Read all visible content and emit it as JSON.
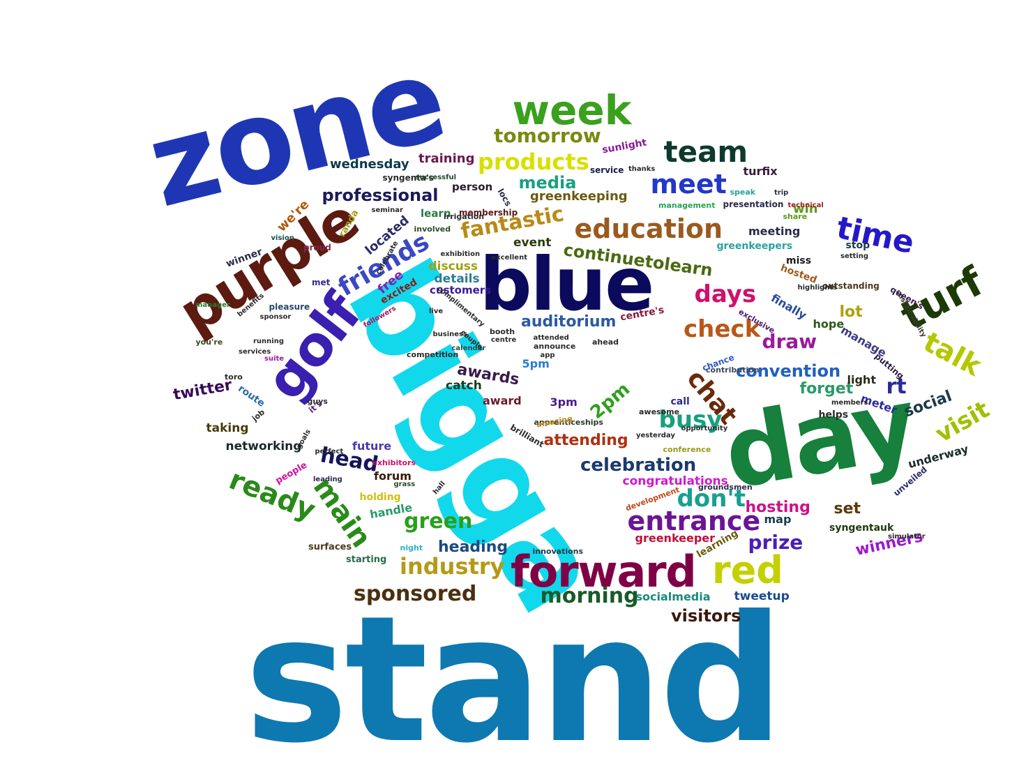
{
  "words": [
    {
      "text": "stand",
      "color": "#0e78b0"
    },
    {
      "text": "zone",
      "color": "#1f36b4"
    },
    {
      "text": "bigga",
      "color": "#12d8ec"
    },
    {
      "text": "day",
      "color": "#16803c"
    },
    {
      "text": "blue",
      "color": "#0b0a5c"
    },
    {
      "text": "purple",
      "color": "#5c1a10"
    },
    {
      "text": "golf",
      "color": "#3a1fb0"
    },
    {
      "text": "forward",
      "color": "#800046"
    },
    {
      "text": "week",
      "color": "#3aa01e"
    },
    {
      "text": "team",
      "color": "#0d3a2c"
    },
    {
      "text": "turf",
      "color": "#1c3a06"
    },
    {
      "text": "time",
      "color": "#2418c8"
    },
    {
      "text": "education",
      "color": "#9a5a1e"
    },
    {
      "text": "meet",
      "color": "#2438c8"
    },
    {
      "text": "red",
      "color": "#c4d000"
    },
    {
      "text": "entrance",
      "color": "#6a1496"
    },
    {
      "text": "friends",
      "color": "#3a48c4"
    },
    {
      "text": "days",
      "color": "#d0106a"
    },
    {
      "text": "check",
      "color": "#b85818"
    },
    {
      "text": "talk",
      "color": "#b4c800"
    },
    {
      "text": "ready",
      "color": "#2a8a1a"
    },
    {
      "text": "main",
      "color": "#2a8a1a"
    },
    {
      "text": "chat",
      "color": "#6a2a0a"
    },
    {
      "text": "products",
      "color": "#d8e000"
    },
    {
      "text": "tomorrow",
      "color": "#7a8a10"
    },
    {
      "text": "fantastic",
      "color": "#b88a18"
    },
    {
      "text": "industry",
      "color": "#b49a18"
    },
    {
      "text": "sponsored",
      "color": "#4a3010"
    },
    {
      "text": "morning",
      "color": "#1a5a2a"
    },
    {
      "text": "busy",
      "color": "#16a080"
    },
    {
      "text": "green",
      "color": "#2aa01a"
    },
    {
      "text": "don't",
      "color": "#18a090"
    },
    {
      "text": "visit",
      "color": "#a0c000"
    },
    {
      "text": "rt",
      "color": "#2a2a9a"
    },
    {
      "text": "head",
      "color": "#14145a"
    },
    {
      "text": "prize",
      "color": "#4a20b4"
    },
    {
      "text": "draw",
      "color": "#9a1a9a"
    },
    {
      "text": "convention",
      "color": "#2060c0"
    },
    {
      "text": "celebration",
      "color": "#1a3a6a"
    },
    {
      "text": "professional",
      "color": "#1a1a5a"
    },
    {
      "text": "continuetolearn",
      "color": "#4a6a10"
    },
    {
      "text": "media",
      "color": "#18a080"
    },
    {
      "text": "auditorium",
      "color": "#2a5aa0"
    },
    {
      "text": "social",
      "color": "#1a3a4a"
    },
    {
      "text": "2pm",
      "color": "#30a020"
    },
    {
      "text": "twitter",
      "color": "#3a0a5a"
    },
    {
      "text": "visitors",
      "color": "#3a1a0a"
    },
    {
      "text": "winners",
      "color": "#9a18d0"
    },
    {
      "text": "attending",
      "color": "#b03010"
    },
    {
      "text": "heading",
      "color": "#1a4a80"
    },
    {
      "text": "hosting",
      "color": "#d0108a"
    },
    {
      "text": "forget",
      "color": "#2a9a6a"
    },
    {
      "text": "awards",
      "color": "#3a1a4a"
    },
    {
      "text": "lot",
      "color": "#b0a010"
    },
    {
      "text": "set",
      "color": "#5a3a0a"
    },
    {
      "text": "greenkeeping",
      "color": "#6a5a10"
    },
    {
      "text": "training",
      "color": "#6a1a4a"
    },
    {
      "text": "wednesday",
      "color": "#0a3a4a"
    },
    {
      "text": "we're",
      "color": "#b05a0a"
    },
    {
      "text": "win",
      "color": "#5a9a1a"
    },
    {
      "text": "located",
      "color": "#2a2a6a"
    },
    {
      "text": "free",
      "color": "#8a1ab0"
    },
    {
      "text": "discuss",
      "color": "#a0a010"
    },
    {
      "text": "details",
      "color": "#2a7a9a"
    },
    {
      "text": "customers",
      "color": "#3a1a9a"
    },
    {
      "text": "event",
      "color": "#2a3a0a"
    },
    {
      "text": "congratulations",
      "color": "#d018d0"
    },
    {
      "text": "greenkeeper",
      "color": "#c0103a"
    },
    {
      "text": "tweetup",
      "color": "#1a4a90"
    },
    {
      "text": "socialmedia",
      "color": "#1a8a7a"
    },
    {
      "text": "networking",
      "color": "#1a2a2a"
    },
    {
      "text": "taking",
      "color": "#4a3a0a"
    },
    {
      "text": "catch",
      "color": "#1a3a1a"
    },
    {
      "text": "award",
      "color": "#6a1a2a"
    },
    {
      "text": "3pm",
      "color": "#4a1a8a"
    },
    {
      "text": "5pm",
      "color": "#2a7ad0"
    },
    {
      "text": "forum",
      "color": "#3a1a0a"
    },
    {
      "text": "handle",
      "color": "#2a9a6a"
    },
    {
      "text": "future",
      "color": "#4a3ab0"
    },
    {
      "text": "route",
      "color": "#2a6aa0"
    },
    {
      "text": "excited",
      "color": "#8a1a1a"
    },
    {
      "text": "centre's",
      "color": "#8a1a3a"
    },
    {
      "text": "finally",
      "color": "#2a4aa0"
    },
    {
      "text": "hope",
      "color": "#2a5a1a"
    },
    {
      "text": "manage",
      "color": "#3a3a8a"
    },
    {
      "text": "light",
      "color": "#2a2a1a"
    },
    {
      "text": "meter",
      "color": "#2a2a9a"
    },
    {
      "text": "underway",
      "color": "#1a2a2a"
    },
    {
      "text": "map",
      "color": "#1a3a4a"
    },
    {
      "text": "syngentauk",
      "color": "#1a3a0a"
    },
    {
      "text": "learning",
      "color": "#6a5a0a"
    },
    {
      "text": "meeting",
      "color": "#2a2a4a"
    },
    {
      "text": "greenkeepers",
      "color": "#2aa0a0"
    },
    {
      "text": "stop",
      "color": "#1a3a4a"
    },
    {
      "text": "miss",
      "color": "#1a1a1a"
    },
    {
      "text": "hosted",
      "color": "#a05a1a"
    },
    {
      "text": "turfix",
      "color": "#3a1a3a"
    },
    {
      "text": "presentation",
      "color": "#2a2a4a"
    },
    {
      "text": "service",
      "color": "#1a1a4a"
    },
    {
      "text": "sunlight",
      "color": "#8a1a9a"
    },
    {
      "text": "person",
      "color": "#2a1a2a"
    },
    {
      "text": "learn",
      "color": "#2a7a4a"
    },
    {
      "text": "syngenta's",
      "color": "#2a2a2a"
    },
    {
      "text": "winner",
      "color": "#2a2a4a"
    },
    {
      "text": "call",
      "color": "#2a2a9a"
    },
    {
      "text": "helps",
      "color": "#2a2a2a"
    },
    {
      "text": "holding",
      "color": "#d0c010"
    },
    {
      "text": "surfaces",
      "color": "#4a3a1a"
    },
    {
      "text": "starting",
      "color": "#2a6a4a"
    },
    {
      "text": "pleasure",
      "color": "#2a4a6a"
    },
    {
      "text": "competition",
      "color": "#2a2a2a"
    },
    {
      "text": "announce",
      "color": "#2a2a2a"
    },
    {
      "text": "innovations",
      "color": "#1a3a4a"
    },
    {
      "text": "involved",
      "color": "#2a4a2a"
    },
    {
      "text": "ahead",
      "color": "#2a2a2a"
    },
    {
      "text": "contribution",
      "color": "#3a4a5a"
    },
    {
      "text": "apprenticeships",
      "color": "#2a3a2a"
    },
    {
      "text": "conference",
      "color": "#9a9a1a"
    },
    {
      "text": "chance",
      "color": "#2a5ad0"
    },
    {
      "text": "toro",
      "color": "#2a2a2a"
    },
    {
      "text": "guys",
      "color": "#2a2a2a"
    },
    {
      "text": "you're",
      "color": "#3a4a1a"
    },
    {
      "text": "met",
      "color": "#2a2a9a"
    },
    {
      "text": "proud",
      "color": "#7a2a4a"
    },
    {
      "text": "vision",
      "color": "#1a4a4a"
    },
    {
      "text": "it's",
      "color": "#5a2a6a"
    },
    {
      "text": "people",
      "color": "#d010a0"
    },
    {
      "text": "exhibitors",
      "color": "#d0106a"
    },
    {
      "text": "amazing",
      "color": "#c08a1a"
    },
    {
      "text": "brilliant",
      "color": "#2a2a2a"
    },
    {
      "text": "awesome",
      "color": "#2a2a2a"
    },
    {
      "text": "leading",
      "color": "#2a2a4a"
    },
    {
      "text": "grass",
      "color": "#2a4a2a"
    },
    {
      "text": "night",
      "color": "#2ab0d0"
    },
    {
      "text": "groundsmen",
      "color": "#2a2a4a"
    },
    {
      "text": "irrigation",
      "color": "#2a2a2a"
    },
    {
      "text": "successful",
      "color": "#1a4a2a"
    },
    {
      "text": "management",
      "color": "#2aa05a"
    },
    {
      "text": "seminar",
      "color": "#2a2a2a"
    },
    {
      "text": "randa",
      "color": "#a0a01a"
    },
    {
      "text": "trip",
      "color": "#2a2a4a"
    },
    {
      "text": "speak",
      "color": "#2aa0a0"
    },
    {
      "text": "share",
      "color": "#5a9a1a"
    },
    {
      "text": "technical",
      "color": "#a01a1a"
    },
    {
      "text": "exhibition",
      "color": "#2a2a2a"
    },
    {
      "text": "excellent",
      "color": "#2a2a2a"
    },
    {
      "text": "putting",
      "color": "#2a1a4a"
    },
    {
      "text": "outstanding",
      "color": "#4a3a1a"
    },
    {
      "text": "sustainability",
      "color": "#3a3a2a"
    },
    {
      "text": "queen's",
      "color": "#3a1a4a"
    },
    {
      "text": "unveiled",
      "color": "#2a2a6a"
    },
    {
      "text": "booth",
      "color": "#2a2a2a"
    },
    {
      "text": "attended",
      "color": "#2a2a2a"
    },
    {
      "text": "centre",
      "color": "#2a2a2a"
    },
    {
      "text": "calendar",
      "color": "#2a4a4a"
    },
    {
      "text": "app",
      "color": "#2a2a2a"
    },
    {
      "text": "development",
      "color": "#c04a1a"
    },
    {
      "text": "highlights",
      "color": "#2a2a2a"
    },
    {
      "text": "complimentary",
      "color": "#2a2a2a"
    },
    {
      "text": "followers",
      "color": "#a01a6a"
    },
    {
      "text": "exclusive",
      "color": "#4a1a6a"
    },
    {
      "text": "membership",
      "color": "#5a1a1a"
    },
    {
      "text": "locs",
      "color": "#2a2a4a"
    },
    {
      "text": "setting",
      "color": "#2a2a2a"
    },
    {
      "text": "manager",
      "color": "#2a7a2a"
    },
    {
      "text": "running",
      "color": "#2a2a2a"
    },
    {
      "text": "services",
      "color": "#2a2a2a"
    },
    {
      "text": "suite",
      "color": "#a01aa0"
    },
    {
      "text": "job",
      "color": "#2a2a2a"
    },
    {
      "text": "goals",
      "color": "#2a2a2a"
    },
    {
      "text": "hall",
      "color": "#2a2a2a"
    },
    {
      "text": "perfect",
      "color": "#2a2a2a"
    },
    {
      "text": "sponsor",
      "color": "#2a2a2a"
    },
    {
      "text": "benefits",
      "color": "#2a2a2a"
    },
    {
      "text": "business",
      "color": "#2a2a2a"
    },
    {
      "text": "couple",
      "color": "#2a2a2a"
    },
    {
      "text": "live",
      "color": "#2a2a2a"
    },
    {
      "text": "members",
      "color": "#2a2a2a"
    },
    {
      "text": "opportunity",
      "color": "#2a2a2a"
    },
    {
      "text": "celebrate",
      "color": "#2a2a2a"
    },
    {
      "text": "yesterday",
      "color": "#2a2a2a"
    },
    {
      "text": "simulator",
      "color": "#2a2a2a"
    },
    {
      "text": "thanks",
      "color": "#2a2a2a"
    }
  ]
}
